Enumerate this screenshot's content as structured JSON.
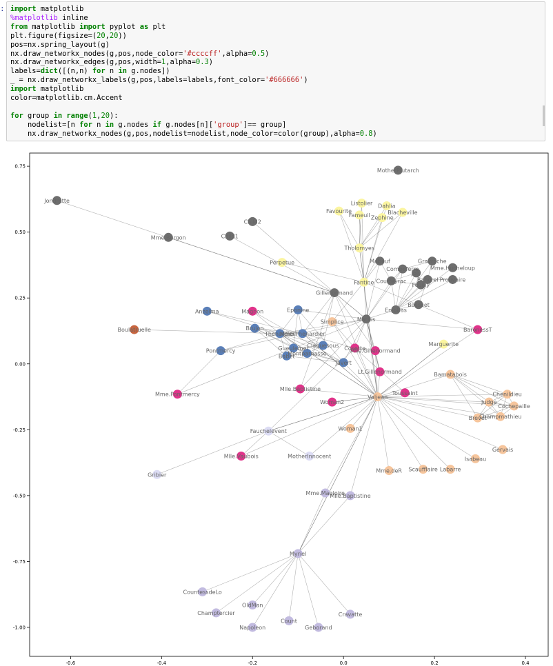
{
  "cell": {
    "prompt": ":",
    "lines": [
      [
        {
          "t": "import",
          "c": "kw"
        },
        {
          "t": " matplotlib"
        }
      ],
      [
        {
          "t": "%matplotlib",
          "c": "magic"
        },
        {
          "t": " inline"
        }
      ],
      [
        {
          "t": "from",
          "c": "kw"
        },
        {
          "t": " matplotlib "
        },
        {
          "t": "import",
          "c": "kw"
        },
        {
          "t": " pyplot "
        },
        {
          "t": "as",
          "c": "kw"
        },
        {
          "t": " plt"
        }
      ],
      [
        {
          "t": "plt.figure(figsize=("
        },
        {
          "t": "20",
          "c": "num"
        },
        {
          "t": ","
        },
        {
          "t": "20",
          "c": "num"
        },
        {
          "t": "))"
        }
      ],
      [
        {
          "t": "pos=nx.spring_layout(g)"
        }
      ],
      [
        {
          "t": "nx.draw_networkx_nodes(g,pos,node_color="
        },
        {
          "t": "'#ccccff'",
          "c": "str"
        },
        {
          "t": ",alpha="
        },
        {
          "t": "0.5",
          "c": "num"
        },
        {
          "t": ")"
        }
      ],
      [
        {
          "t": "nx.draw_networkx_edges(g,pos,width="
        },
        {
          "t": "1",
          "c": "num"
        },
        {
          "t": ",alpha="
        },
        {
          "t": "0.3",
          "c": "num"
        },
        {
          "t": ")"
        }
      ],
      [
        {
          "t": "labels="
        },
        {
          "t": "dict",
          "c": "kw"
        },
        {
          "t": "([(n,n) "
        },
        {
          "t": "for",
          "c": "kw"
        },
        {
          "t": " n "
        },
        {
          "t": "in",
          "c": "kw"
        },
        {
          "t": " g.nodes])"
        }
      ],
      [
        {
          "t": "_ = nx.draw_networkx_labels(g,pos,labels=labels,font_color="
        },
        {
          "t": "'#666666'",
          "c": "str"
        },
        {
          "t": ")"
        }
      ],
      [
        {
          "t": "import",
          "c": "kw"
        },
        {
          "t": " matplotlib"
        }
      ],
      [
        {
          "t": "color=matplotlib.cm.Accent"
        }
      ],
      [
        {
          "t": ""
        }
      ],
      [
        {
          "t": "for",
          "c": "kw"
        },
        {
          "t": " group "
        },
        {
          "t": "in",
          "c": "kw"
        },
        {
          "t": " "
        },
        {
          "t": "range",
          "c": "kw"
        },
        {
          "t": "("
        },
        {
          "t": "1",
          "c": "num"
        },
        {
          "t": ","
        },
        {
          "t": "20",
          "c": "num"
        },
        {
          "t": "):"
        }
      ],
      [
        {
          "t": "    nodelist=[n "
        },
        {
          "t": "for",
          "c": "kw"
        },
        {
          "t": " n "
        },
        {
          "t": "in",
          "c": "kw"
        },
        {
          "t": " g.nodes "
        },
        {
          "t": "if",
          "c": "kw"
        },
        {
          "t": " g.nodes[n]["
        },
        {
          "t": "'group'",
          "c": "str"
        },
        {
          "t": "]== group]"
        }
      ],
      [
        {
          "t": "    nx.draw_networkx_nodes(g,pos,nodelist=nodelist,node_color=color(group),alpha="
        },
        {
          "t": "0.8",
          "c": "num"
        },
        {
          "t": ")"
        }
      ]
    ]
  },
  "chart_data": {
    "type": "scatter",
    "xlim": [
      -0.69,
      0.45
    ],
    "ylim": [
      -1.11,
      0.8
    ],
    "xticks": [
      -0.6,
      -0.4,
      -0.2,
      0.0,
      0.2,
      0.4
    ],
    "xtick_labels": [
      "-0.6",
      "-0.4",
      "-0.2",
      "0.0",
      "0.2",
      "0.4"
    ],
    "yticks": [
      0.75,
      0.5,
      0.25,
      0.0,
      -0.25,
      -0.5,
      -0.75,
      -1.0
    ],
    "ytick_labels": [
      "0.75",
      "0.50",
      "0.25",
      "0.00",
      "-0.25",
      "-0.50",
      "-0.75",
      "-1.00"
    ],
    "grid": false,
    "group_colors": {
      "dkgray": "#6e6e6e",
      "yellow": "#fbf5a0",
      "blue": "#5a7fb8",
      "magenta": "#e0338a",
      "orange": "#f6c59c",
      "lavender": "#c2bbe0",
      "brown": "#c7653f",
      "pale": "#dcdcf4"
    },
    "nodes": [
      {
        "label": "MotherPlutarch",
        "x": 0.12,
        "y": 0.735,
        "g": "dkgray"
      },
      {
        "label": "Jondrette",
        "x": -0.63,
        "y": 0.62,
        "g": "dkgray"
      },
      {
        "label": "Child2",
        "x": -0.2,
        "y": 0.54,
        "g": "dkgray"
      },
      {
        "label": "Child1",
        "x": -0.25,
        "y": 0.485,
        "g": "dkgray"
      },
      {
        "label": "Mme.Burgon",
        "x": -0.385,
        "y": 0.48,
        "g": "dkgray"
      },
      {
        "label": "Listolier",
        "x": 0.04,
        "y": 0.61,
        "g": "yellow"
      },
      {
        "label": "Dahlia",
        "x": 0.095,
        "y": 0.6,
        "g": "yellow"
      },
      {
        "label": "Favourite",
        "x": -0.01,
        "y": 0.58,
        "g": "yellow"
      },
      {
        "label": "Blacheville",
        "x": 0.13,
        "y": 0.575,
        "g": "yellow"
      },
      {
        "label": "Fameuil",
        "x": 0.035,
        "y": 0.565,
        "g": "yellow"
      },
      {
        "label": "Zephine",
        "x": 0.085,
        "y": 0.555,
        "g": "yellow"
      },
      {
        "label": "Tholomyes",
        "x": 0.035,
        "y": 0.44,
        "g": "yellow"
      },
      {
        "label": "Perpetue",
        "x": -0.135,
        "y": 0.385,
        "g": "yellow"
      },
      {
        "label": "Bamatabois",
        "x": 0.235,
        "y": -0.04,
        "g": "orange"
      },
      {
        "label": "Mabeuf",
        "x": 0.08,
        "y": 0.39,
        "g": "dkgray"
      },
      {
        "label": "Gravroche",
        "x": 0.195,
        "y": 0.39,
        "g": "dkgray"
      },
      {
        "label": "Mme.Hucheloup",
        "x": 0.24,
        "y": 0.365,
        "g": "dkgray"
      },
      {
        "label": "Combeferre",
        "x": 0.13,
        "y": 0.36,
        "g": "dkgray"
      },
      {
        "label": "Joly",
        "x": 0.16,
        "y": 0.345,
        "g": "dkgray"
      },
      {
        "label": "Bahorel",
        "x": 0.185,
        "y": 0.32,
        "g": "dkgray"
      },
      {
        "label": "Prouvaire",
        "x": 0.24,
        "y": 0.32,
        "g": "dkgray"
      },
      {
        "label": "Courfeyrac",
        "x": 0.105,
        "y": 0.315,
        "g": "dkgray"
      },
      {
        "label": "Feuilly",
        "x": 0.17,
        "y": 0.3,
        "g": "dkgray"
      },
      {
        "label": "Fantine",
        "x": 0.045,
        "y": 0.31,
        "g": "yellow"
      },
      {
        "label": "Gillenormand",
        "x": -0.02,
        "y": 0.27,
        "g": "dkgray"
      },
      {
        "label": "Bossuet",
        "x": 0.165,
        "y": 0.225,
        "g": "dkgray"
      },
      {
        "label": "Enjolras",
        "x": 0.115,
        "y": 0.205,
        "g": "dkgray"
      },
      {
        "label": "Marius",
        "x": 0.05,
        "y": 0.17,
        "g": "dkgray"
      },
      {
        "label": "Simplice",
        "x": -0.025,
        "y": 0.16,
        "g": "orange"
      },
      {
        "label": "Anzelma",
        "x": -0.3,
        "y": 0.2,
        "g": "blue"
      },
      {
        "label": "Magnon",
        "x": -0.2,
        "y": 0.2,
        "g": "magenta"
      },
      {
        "label": "Eponine",
        "x": -0.1,
        "y": 0.205,
        "g": "blue"
      },
      {
        "label": "Boulatruelle",
        "x": -0.46,
        "y": 0.13,
        "g": "brown"
      },
      {
        "label": "Brujon",
        "x": -0.195,
        "y": 0.135,
        "g": "blue"
      },
      {
        "label": "Thenardier",
        "x": -0.14,
        "y": 0.115,
        "g": "blue"
      },
      {
        "label": "Mme.Thenardier",
        "x": -0.09,
        "y": 0.115,
        "g": "blue"
      },
      {
        "label": "Claquesous",
        "x": -0.045,
        "y": 0.07,
        "g": "blue"
      },
      {
        "label": "Gueulemer",
        "x": -0.11,
        "y": 0.06,
        "g": "blue"
      },
      {
        "label": "Montparnasse",
        "x": -0.08,
        "y": 0.04,
        "g": "blue"
      },
      {
        "label": "Babet",
        "x": -0.125,
        "y": 0.03,
        "g": "blue"
      },
      {
        "label": "Javert",
        "x": 0.0,
        "y": 0.005,
        "g": "blue"
      },
      {
        "label": "Cosette",
        "x": 0.025,
        "y": 0.06,
        "g": "magenta"
      },
      {
        "label": "Mlle.Gillenormand",
        "x": 0.07,
        "y": 0.05,
        "g": "magenta"
      },
      {
        "label": "Lt.Gillenormand",
        "x": 0.08,
        "y": -0.03,
        "g": "magenta"
      },
      {
        "label": "Pontmercy",
        "x": -0.27,
        "y": 0.05,
        "g": "blue"
      },
      {
        "label": "Marguerite",
        "x": 0.22,
        "y": 0.075,
        "g": "yellow"
      },
      {
        "label": "BaronessT",
        "x": 0.295,
        "y": 0.13,
        "g": "magenta"
      },
      {
        "label": "Mme.Pontmercy",
        "x": -0.365,
        "y": -0.115,
        "g": "magenta"
      },
      {
        "label": "Mlle.Baptistine",
        "x": -0.095,
        "y": -0.095,
        "g": "magenta"
      },
      {
        "label": "Valjean",
        "x": 0.075,
        "y": -0.125,
        "g": "orange"
      },
      {
        "label": "Toussaint",
        "x": 0.135,
        "y": -0.11,
        "g": "magenta"
      },
      {
        "label": "Woman2",
        "x": -0.025,
        "y": -0.145,
        "g": "magenta"
      },
      {
        "label": "Chenildieu",
        "x": 0.36,
        "y": -0.115,
        "g": "orange"
      },
      {
        "label": "Judge",
        "x": 0.32,
        "y": -0.145,
        "g": "orange"
      },
      {
        "label": "Cochepaille",
        "x": 0.375,
        "y": -0.16,
        "g": "orange"
      },
      {
        "label": "Brevet",
        "x": 0.295,
        "y": -0.205,
        "g": "orange"
      },
      {
        "label": "Champmathieu",
        "x": 0.345,
        "y": -0.2,
        "g": "orange"
      },
      {
        "label": "Woman1",
        "x": 0.015,
        "y": -0.245,
        "g": "orange"
      },
      {
        "label": "Fauchelevent",
        "x": -0.165,
        "y": -0.255,
        "g": "pale"
      },
      {
        "label": "Mlle.Vaubois",
        "x": -0.225,
        "y": -0.35,
        "g": "magenta"
      },
      {
        "label": "MotherInnocent",
        "x": -0.075,
        "y": -0.35,
        "g": "pale"
      },
      {
        "label": "Gervais",
        "x": 0.35,
        "y": -0.325,
        "g": "orange"
      },
      {
        "label": "Isabeau",
        "x": 0.29,
        "y": -0.36,
        "g": "orange"
      },
      {
        "label": "Scaufflaire",
        "x": 0.175,
        "y": -0.4,
        "g": "orange"
      },
      {
        "label": "Labarre",
        "x": 0.235,
        "y": -0.4,
        "g": "orange"
      },
      {
        "label": "Mme.deR",
        "x": 0.1,
        "y": -0.405,
        "g": "orange"
      },
      {
        "label": "Gribier",
        "x": -0.41,
        "y": -0.42,
        "g": "pale"
      },
      {
        "label": "Mme.Magloire",
        "x": -0.04,
        "y": -0.49,
        "g": "lavender"
      },
      {
        "label": "Mlle.Baptistine",
        "x": 0.015,
        "y": -0.5,
        "g": "lavender"
      },
      {
        "label": "Myriel",
        "x": -0.1,
        "y": -0.72,
        "g": "lavender"
      },
      {
        "label": "CountessdeLo",
        "x": -0.31,
        "y": -0.865,
        "g": "lavender"
      },
      {
        "label": "OldMan",
        "x": -0.2,
        "y": -0.915,
        "g": "lavender"
      },
      {
        "label": "Champtercier",
        "x": -0.28,
        "y": -0.945,
        "g": "lavender"
      },
      {
        "label": "Cravatte",
        "x": 0.015,
        "y": -0.95,
        "g": "lavender"
      },
      {
        "label": "Count",
        "x": -0.12,
        "y": -0.975,
        "g": "lavender"
      },
      {
        "label": "Napoleon",
        "x": -0.2,
        "y": -1.0,
        "g": "lavender"
      },
      {
        "label": "Geborand",
        "x": -0.055,
        "y": -1.0,
        "g": "lavender"
      }
    ],
    "edges": [
      [
        1,
        24
      ],
      [
        2,
        24
      ],
      [
        3,
        24
      ],
      [
        4,
        24
      ],
      [
        12,
        23
      ],
      [
        5,
        11
      ],
      [
        6,
        11
      ],
      [
        7,
        11
      ],
      [
        8,
        11
      ],
      [
        9,
        11
      ],
      [
        10,
        11
      ],
      [
        5,
        23
      ],
      [
        6,
        23
      ],
      [
        7,
        23
      ],
      [
        8,
        23
      ],
      [
        9,
        23
      ],
      [
        10,
        23
      ],
      [
        11,
        23
      ],
      [
        11,
        49
      ],
      [
        23,
        49
      ],
      [
        23,
        27
      ],
      [
        14,
        27
      ],
      [
        14,
        23
      ],
      [
        15,
        26
      ],
      [
        16,
        26
      ],
      [
        17,
        26
      ],
      [
        18,
        26
      ],
      [
        19,
        26
      ],
      [
        20,
        26
      ],
      [
        21,
        26
      ],
      [
        22,
        26
      ],
      [
        25,
        26
      ],
      [
        17,
        27
      ],
      [
        21,
        27
      ],
      [
        26,
        27
      ],
      [
        15,
        17
      ],
      [
        15,
        19
      ],
      [
        17,
        21
      ],
      [
        18,
        22
      ],
      [
        19,
        20
      ],
      [
        21,
        22
      ],
      [
        25,
        19
      ],
      [
        18,
        21
      ],
      [
        14,
        21
      ],
      [
        24,
        27
      ],
      [
        24,
        42
      ],
      [
        24,
        35
      ],
      [
        24,
        36
      ],
      [
        27,
        41
      ],
      [
        27,
        42
      ],
      [
        27,
        31
      ],
      [
        27,
        49
      ],
      [
        27,
        40
      ],
      [
        27,
        34
      ],
      [
        27,
        24
      ],
      [
        27,
        43
      ],
      [
        27,
        46
      ],
      [
        29,
        34
      ],
      [
        30,
        34
      ],
      [
        31,
        34
      ],
      [
        32,
        34
      ],
      [
        33,
        34
      ],
      [
        34,
        35
      ],
      [
        34,
        36
      ],
      [
        34,
        37
      ],
      [
        34,
        38
      ],
      [
        34,
        39
      ],
      [
        34,
        40
      ],
      [
        34,
        49
      ],
      [
        34,
        44
      ],
      [
        33,
        37
      ],
      [
        33,
        38
      ],
      [
        33,
        39
      ],
      [
        33,
        35
      ],
      [
        35,
        36
      ],
      [
        35,
        49
      ],
      [
        35,
        41
      ],
      [
        36,
        37
      ],
      [
        37,
        38
      ],
      [
        38,
        39
      ],
      [
        36,
        38
      ],
      [
        37,
        40
      ],
      [
        38,
        40
      ],
      [
        39,
        40
      ],
      [
        31,
        35
      ],
      [
        31,
        40
      ],
      [
        31,
        37
      ],
      [
        30,
        40
      ],
      [
        29,
        35
      ],
      [
        40,
        49
      ],
      [
        41,
        49
      ],
      [
        42,
        49
      ],
      [
        43,
        49
      ],
      [
        50,
        49
      ],
      [
        51,
        49
      ],
      [
        28,
        49
      ],
      [
        28,
        23
      ],
      [
        28,
        41
      ],
      [
        44,
        47
      ],
      [
        27,
        47
      ],
      [
        27,
        44
      ],
      [
        49,
        13
      ],
      [
        49,
        52
      ],
      [
        49,
        53
      ],
      [
        49,
        54
      ],
      [
        49,
        55
      ],
      [
        49,
        56
      ],
      [
        49,
        57
      ],
      [
        49,
        58
      ],
      [
        49,
        61
      ],
      [
        49,
        62
      ],
      [
        49,
        63
      ],
      [
        49,
        64
      ],
      [
        49,
        65
      ],
      [
        49,
        67
      ],
      [
        49,
        68
      ],
      [
        49,
        69
      ],
      [
        49,
        45
      ],
      [
        49,
        46
      ],
      [
        49,
        48
      ],
      [
        49,
        59
      ],
      [
        49,
        60
      ],
      [
        49,
        24
      ],
      [
        49,
        34
      ],
      [
        49,
        35
      ],
      [
        13,
        52
      ],
      [
        13,
        53
      ],
      [
        13,
        54
      ],
      [
        13,
        55
      ],
      [
        13,
        56
      ],
      [
        52,
        53
      ],
      [
        52,
        54
      ],
      [
        52,
        55
      ],
      [
        52,
        56
      ],
      [
        53,
        54
      ],
      [
        53,
        55
      ],
      [
        53,
        56
      ],
      [
        54,
        55
      ],
      [
        54,
        56
      ],
      [
        55,
        56
      ],
      [
        58,
        49
      ],
      [
        58,
        66
      ],
      [
        58,
        59
      ],
      [
        58,
        60
      ],
      [
        58,
        41
      ],
      [
        48,
        27
      ],
      [
        48,
        24
      ],
      [
        43,
        27
      ],
      [
        43,
        42
      ],
      [
        42,
        41
      ],
      [
        41,
        50
      ],
      [
        51,
        49
      ],
      [
        69,
        67
      ],
      [
        69,
        68
      ],
      [
        69,
        70
      ],
      [
        69,
        71
      ],
      [
        69,
        72
      ],
      [
        69,
        73
      ],
      [
        69,
        74
      ],
      [
        69,
        75
      ],
      [
        69,
        76
      ],
      [
        67,
        68
      ],
      [
        69,
        49
      ],
      [
        46,
        23
      ],
      [
        45,
        49
      ]
    ]
  }
}
